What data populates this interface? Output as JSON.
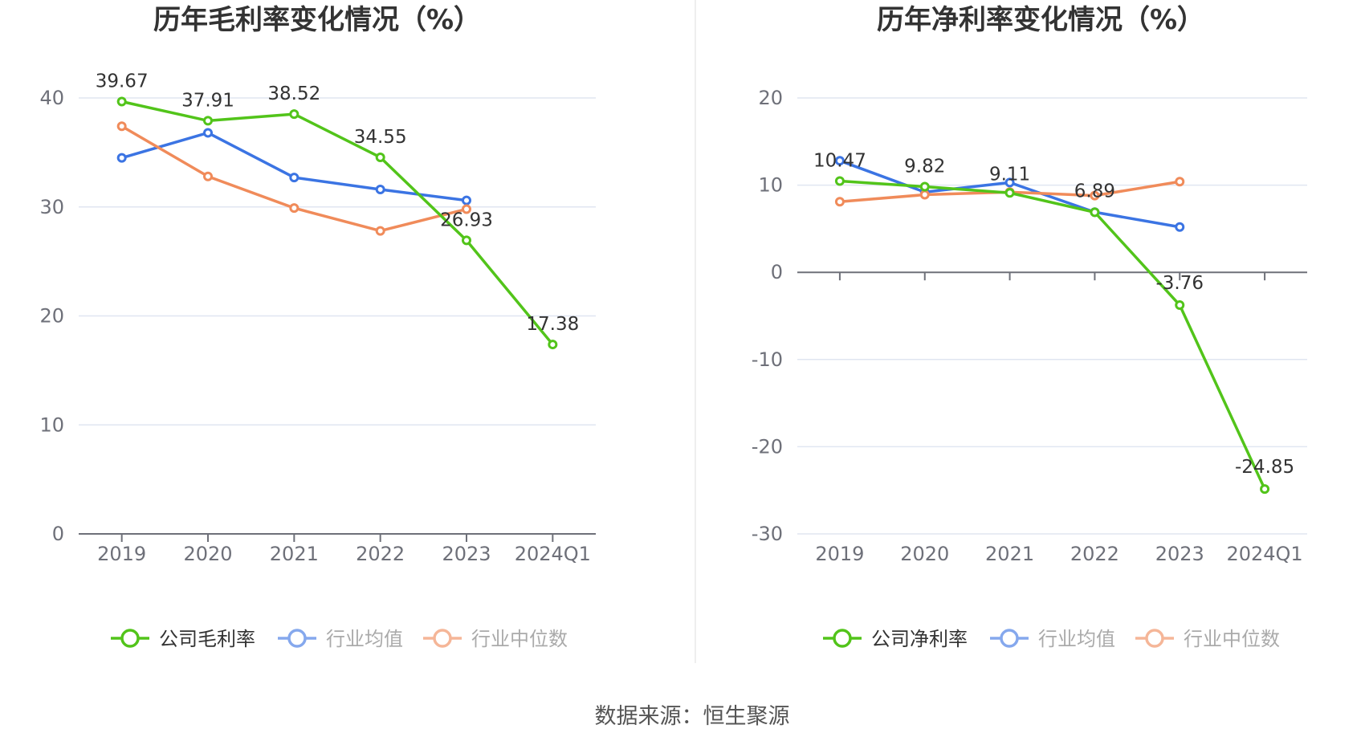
{
  "colors": {
    "company": "#52c41a",
    "industry_avg": "#3b74e3",
    "industry_median": "#f08b5a",
    "grid": "#e0e6f1",
    "axis": "#6e7079",
    "divider": "#eeeeee"
  },
  "chart_data": [
    {
      "type": "line",
      "title": "历年毛利率变化情况（%）",
      "categories": [
        "2019",
        "2020",
        "2021",
        "2022",
        "2023",
        "2024Q1"
      ],
      "ylim": [
        0,
        40
      ],
      "yticks": [
        0,
        10,
        20,
        30,
        40
      ],
      "series": [
        {
          "name": "公司毛利率",
          "key": "company",
          "values": [
            39.67,
            37.91,
            38.52,
            34.55,
            26.93,
            17.38
          ],
          "labels": [
            "39.67",
            "37.91",
            "38.52",
            "34.55",
            "26.93",
            "17.38"
          ]
        },
        {
          "name": "行业均值",
          "key": "industry_avg",
          "values": [
            34.5,
            36.8,
            32.7,
            31.6,
            30.6,
            null
          ]
        },
        {
          "name": "行业中位数",
          "key": "industry_median",
          "values": [
            37.4,
            32.8,
            29.9,
            27.8,
            29.8,
            null
          ]
        }
      ]
    },
    {
      "type": "line",
      "title": "历年净利率变化情况（%）",
      "categories": [
        "2019",
        "2020",
        "2021",
        "2022",
        "2023",
        "2024Q1"
      ],
      "ylim": [
        -30,
        20
      ],
      "yticks": [
        -30,
        -20,
        -10,
        0,
        10,
        20
      ],
      "series": [
        {
          "name": "公司净利率",
          "key": "company",
          "values": [
            10.47,
            9.82,
            9.11,
            6.89,
            -3.76,
            -24.85
          ],
          "labels": [
            "10.47",
            "9.82",
            "9.11",
            "6.89",
            "-3.76",
            "-24.85"
          ]
        },
        {
          "name": "行业均值",
          "key": "industry_avg",
          "values": [
            12.8,
            9.2,
            10.3,
            6.9,
            5.2,
            null
          ]
        },
        {
          "name": "行业中位数",
          "key": "industry_median",
          "values": [
            8.1,
            8.9,
            9.2,
            8.8,
            10.4,
            null
          ]
        }
      ]
    }
  ],
  "source_text": "数据来源：恒生聚源"
}
